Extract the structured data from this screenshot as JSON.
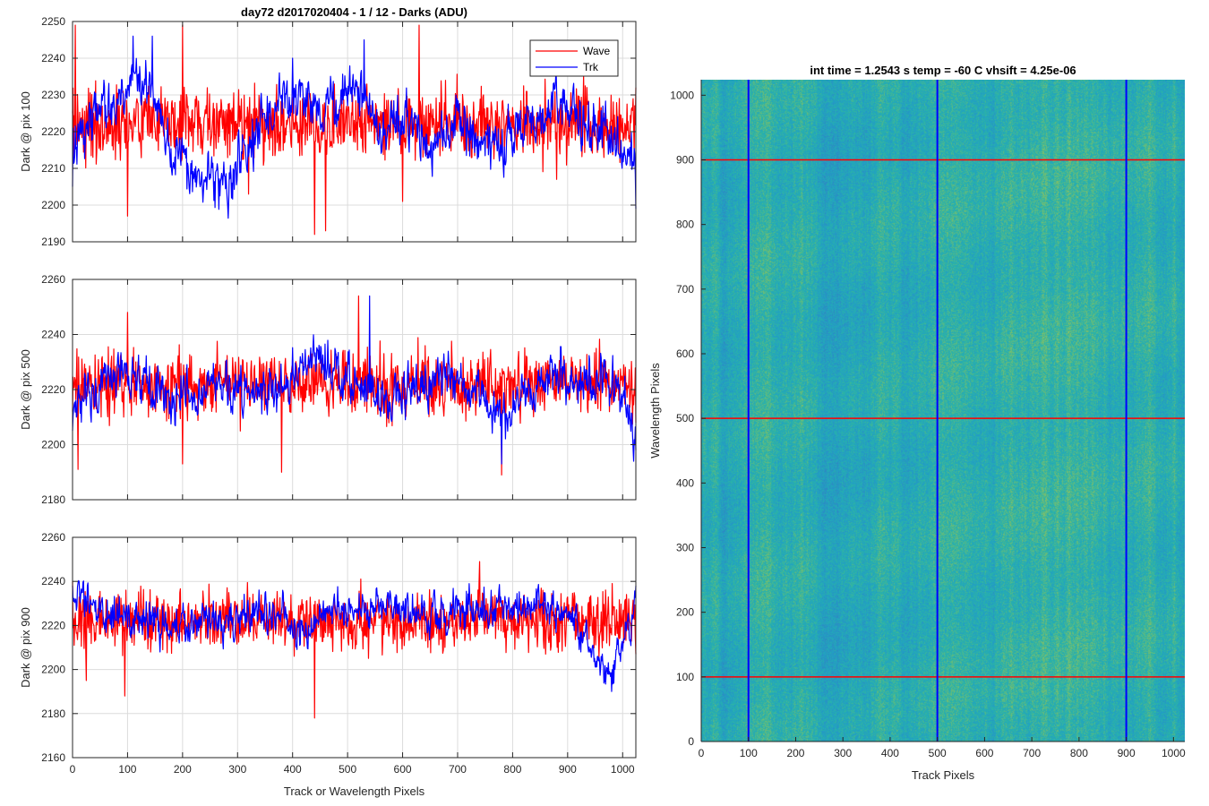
{
  "figure_title": "day72 d2017020404 - 1 / 12 - Darks (ADU)",
  "chart_data": [
    {
      "type": "line",
      "id": "p100",
      "title": "day72 d2017020404 - 1 / 12 - Darks (ADU)",
      "xlabel": "",
      "ylabel": "Dark @ pix 100",
      "xlim": [
        0,
        1024
      ],
      "ylim": [
        2190,
        2250
      ],
      "xticks": [
        0,
        100,
        200,
        300,
        400,
        500,
        600,
        700,
        800,
        900,
        1000
      ],
      "yticks": [
        2190,
        2200,
        2210,
        2220,
        2230,
        2240,
        2250
      ],
      "grid": true,
      "legend": {
        "position": "top-right",
        "entries": [
          "Wave",
          "Trk"
        ]
      },
      "series": [
        {
          "name": "Wave",
          "color": "#ff0000",
          "baseline": [
            [
              0,
              2222
            ],
            [
              1024,
              2222
            ]
          ],
          "noise": 7.5,
          "x": [
            0,
            5,
            100,
            200,
            320,
            440,
            460,
            600,
            630,
            880,
            1024
          ],
          "y": [
            2225,
            2249,
            2197,
            2249,
            2203,
            2192,
            2193,
            2201,
            2249,
            2207,
            2232
          ]
        },
        {
          "name": "Trk",
          "color": "#0000ff",
          "baseline": [
            [
              0,
              2213
            ],
            [
              40,
              2226
            ],
            [
              80,
              2228
            ],
            [
              110,
              2235
            ],
            [
              150,
              2230
            ],
            [
              180,
              2215
            ],
            [
              230,
              2207
            ],
            [
              290,
              2208
            ],
            [
              340,
              2220
            ],
            [
              400,
              2230
            ],
            [
              450,
              2225
            ],
            [
              510,
              2232
            ],
            [
              560,
              2220
            ],
            [
              610,
              2225
            ],
            [
              650,
              2216
            ],
            [
              700,
              2222
            ],
            [
              760,
              2216
            ],
            [
              820,
              2220
            ],
            [
              870,
              2228
            ],
            [
              930,
              2222
            ],
            [
              970,
              2220
            ],
            [
              1024,
              2208
            ]
          ],
          "noise": 5,
          "x": [
            0,
            110,
            145,
            400,
            530,
            1024
          ],
          "y": [
            2205,
            2246,
            2246,
            2240,
            2245,
            2199
          ]
        }
      ]
    },
    {
      "type": "line",
      "id": "p500",
      "title": "",
      "xlabel": "",
      "ylabel": "Dark @ pix 500",
      "xlim": [
        0,
        1024
      ],
      "ylim": [
        2180,
        2260
      ],
      "xticks": [
        0,
        100,
        200,
        300,
        400,
        500,
        600,
        700,
        800,
        900,
        1000
      ],
      "yticks": [
        2180,
        2200,
        2220,
        2240,
        2260
      ],
      "grid": true,
      "series": [
        {
          "name": "Wave",
          "color": "#ff0000",
          "baseline": [
            [
              0,
              2222
            ],
            [
              1024,
              2222
            ]
          ],
          "noise": 9,
          "x": [
            0,
            10,
            100,
            200,
            380,
            520,
            780,
            1024
          ],
          "y": [
            2212,
            2191,
            2248,
            2193,
            2190,
            2254,
            2189,
            2208
          ]
        },
        {
          "name": "Trk",
          "color": "#0000ff",
          "baseline": [
            [
              0,
              2212
            ],
            [
              50,
              2222
            ],
            [
              100,
              2226
            ],
            [
              150,
              2220
            ],
            [
              200,
              2216
            ],
            [
              260,
              2222
            ],
            [
              320,
              2218
            ],
            [
              380,
              2222
            ],
            [
              440,
              2232
            ],
            [
              470,
              2228
            ],
            [
              520,
              2222
            ],
            [
              570,
              2216
            ],
            [
              620,
              2220
            ],
            [
              680,
              2224
            ],
            [
              740,
              2218
            ],
            [
              780,
              2210
            ],
            [
              830,
              2220
            ],
            [
              880,
              2225
            ],
            [
              940,
              2222
            ],
            [
              980,
              2228
            ],
            [
              1024,
              2203
            ]
          ],
          "noise": 6,
          "x": [
            0,
            540,
            780,
            1024
          ],
          "y": [
            2205,
            2254,
            2193,
            2198
          ]
        }
      ]
    },
    {
      "type": "line",
      "id": "p900",
      "title": "",
      "xlabel": "Track or Wavelength Pixels",
      "ylabel": "Dark @ pix 900",
      "xlim": [
        0,
        1024
      ],
      "ylim": [
        2160,
        2260
      ],
      "xticks": [
        0,
        100,
        200,
        300,
        400,
        500,
        600,
        700,
        800,
        900,
        1000
      ],
      "yticks": [
        2160,
        2180,
        2200,
        2220,
        2240,
        2260
      ],
      "grid": true,
      "series": [
        {
          "name": "Wave",
          "color": "#ff0000",
          "baseline": [
            [
              0,
              2222
            ],
            [
              1024,
              2222
            ]
          ],
          "noise": 10,
          "x": [
            0,
            25,
            95,
            440,
            740,
            1024
          ],
          "y": [
            2240,
            2195,
            2188,
            2178,
            2249,
            2207
          ]
        },
        {
          "name": "Trk",
          "color": "#0000ff",
          "baseline": [
            [
              0,
              2232
            ],
            [
              60,
              2228
            ],
            [
              120,
              2222
            ],
            [
              180,
              2218
            ],
            [
              240,
              2224
            ],
            [
              300,
              2222
            ],
            [
              360,
              2228
            ],
            [
              420,
              2215
            ],
            [
              460,
              2226
            ],
            [
              520,
              2228
            ],
            [
              580,
              2230
            ],
            [
              640,
              2222
            ],
            [
              700,
              2228
            ],
            [
              760,
              2226
            ],
            [
              820,
              2230
            ],
            [
              880,
              2226
            ],
            [
              920,
              2218
            ],
            [
              960,
              2203
            ],
            [
              980,
              2200
            ],
            [
              1000,
              2212
            ],
            [
              1024,
              2232
            ]
          ],
          "noise": 6,
          "x": [
            0,
            980,
            1024
          ],
          "y": [
            2238,
            2190,
            2238
          ]
        }
      ]
    },
    {
      "type": "heatmap",
      "id": "img",
      "title": "int time = 1.2543 s    temp = -60 C    vhsift = 4.25e-06",
      "xlabel": "Track Pixels",
      "ylabel": "Wavelength Pixels",
      "xlim": [
        0,
        1024
      ],
      "ylim": [
        0,
        1024
      ],
      "xticks": [
        0,
        100,
        200,
        300,
        400,
        500,
        600,
        700,
        800,
        900,
        1000
      ],
      "yticks": [
        0,
        100,
        200,
        300,
        400,
        500,
        600,
        700,
        800,
        900,
        1000
      ],
      "colormap": [
        "#3085c2",
        "#21a0c4",
        "#2ab3a8",
        "#76be6e",
        "#b9c653"
      ],
      "grid": false,
      "hlines": {
        "color": "#ff0000",
        "y": [
          100,
          500,
          900
        ]
      },
      "vlines": {
        "color": "#0000ff",
        "x": [
          100,
          500,
          900
        ]
      }
    }
  ]
}
